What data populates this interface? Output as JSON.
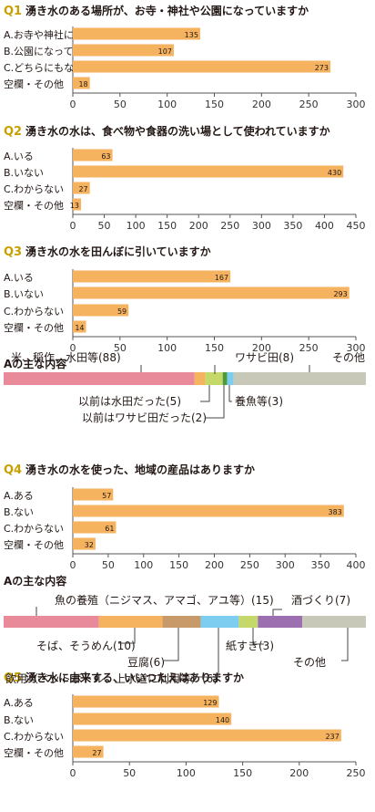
{
  "colors": {
    "accent": "#c8a000",
    "bar": "#f5b25f",
    "axis": "#555555",
    "grid": "#999999",
    "text": "#231815"
  },
  "chart_data": [
    {
      "type": "bar",
      "orientation": "horizontal",
      "number": "Q1",
      "title": "湧き水のある場所が、お寺・神社や公園になっていますか",
      "categories": [
        "A.お寺や神社になっている",
        "B.公園になっている",
        "C.どちらにもなっていない",
        "空欄・その他"
      ],
      "values": [
        135,
        107,
        273,
        18
      ],
      "xlim": [
        0,
        300
      ],
      "ticks": [
        0,
        50,
        100,
        150,
        200,
        250,
        300
      ],
      "grid": false
    },
    {
      "type": "bar",
      "orientation": "horizontal",
      "number": "Q2",
      "title": "湧き水の水は、食べ物や食器の洗い場として使われていますか",
      "categories": [
        "A.いる",
        "B.いない",
        "C.わからない",
        "空欄・その他"
      ],
      "values": [
        63,
        430,
        27,
        13
      ],
      "xlim": [
        0,
        450
      ],
      "ticks": [
        0,
        50,
        100,
        150,
        200,
        250,
        300,
        350,
        400,
        450
      ],
      "grid": false
    },
    {
      "type": "bar",
      "orientation": "horizontal",
      "number": "Q3",
      "title": "湧き水の水を田んぼに引いていますか",
      "categories": [
        "A.いる",
        "B.いない",
        "C.わからない",
        "空欄・その他"
      ],
      "values": [
        167,
        293,
        59,
        14
      ],
      "xlim": [
        0,
        300
      ],
      "ticks": [
        0,
        50,
        100,
        150,
        200,
        250,
        300
      ],
      "grid": false
    },
    {
      "type": "bar",
      "orientation": "stacked-horizontal",
      "title": "Aの主な内容",
      "series": [
        {
          "name": "米、稲作、水田等",
          "value": 88,
          "color": "#e98a9a"
        },
        {
          "name": "以前は水田だった",
          "value": 5,
          "color": "#f5b25f"
        },
        {
          "name": "ワサビ田",
          "value": 8,
          "color": "#c4d96a"
        },
        {
          "name": "以前はワサビ田だった",
          "value": 2,
          "color": "#4d9a3a"
        },
        {
          "name": "養魚等",
          "value": 3,
          "color": "#7ccdf0"
        },
        {
          "name": "その他",
          "value": 61,
          "color": "#c8c8b8"
        }
      ]
    },
    {
      "type": "bar",
      "orientation": "horizontal",
      "number": "Q4",
      "title": "湧き水の水を使った、地域の産品はありますか",
      "categories": [
        "A.ある",
        "B.ない",
        "C.わからない",
        "空欄・その他"
      ],
      "values": [
        57,
        383,
        61,
        32
      ],
      "xlim": [
        0,
        400
      ],
      "ticks": [
        0,
        50,
        100,
        150,
        200,
        250,
        300,
        350,
        400
      ],
      "grid": false
    },
    {
      "type": "bar",
      "orientation": "stacked-horizontal",
      "title": "Aの主な内容",
      "series": [
        {
          "name": "魚の養殖（ニジマス、アマゴ、アユ等）",
          "value": 15,
          "color": "#e98a9a"
        },
        {
          "name": "そば、そうめん",
          "value": 10,
          "color": "#f5b25f"
        },
        {
          "name": "豆腐",
          "value": 6,
          "color": "#c89a6a"
        },
        {
          "name": "飲用（ペットボトル、上水道に利用等）",
          "value": 6,
          "color": "#7ccdf0"
        },
        {
          "name": "紙すき",
          "value": 3,
          "color": "#c4d96a"
        },
        {
          "name": "酒づくり",
          "value": 7,
          "color": "#9b6fb0"
        },
        {
          "name": "その他",
          "value": 10,
          "color": "#c8c8b8"
        }
      ]
    },
    {
      "type": "bar",
      "orientation": "horizontal",
      "number": "Q5",
      "title": "湧き水に由来する、いいつたえはありますか",
      "categories": [
        "A.ある",
        "B.ない",
        "C.わからない",
        "空欄・その他"
      ],
      "values": [
        129,
        140,
        237,
        27
      ],
      "xlim": [
        0,
        250
      ],
      "ticks": [
        0,
        50,
        100,
        150,
        200,
        250
      ],
      "grid": false
    }
  ],
  "q3_breakdown_labels": [
    "米、稲作、水田等(88)",
    "以前は水田だった(5)",
    "ワサビ田(8)",
    "以前はワサビ田だった(2)",
    "養魚等(3)",
    "その他"
  ],
  "q4_breakdown_labels": [
    "魚の養殖（ニジマス、アマゴ、アユ等）(15)",
    "そば、そうめん(10)",
    "豆腐(6)",
    "飲用（ペットボトル、上水道に利用等）(6)",
    "紙すき(3)",
    "酒づくり(7)",
    "その他"
  ]
}
